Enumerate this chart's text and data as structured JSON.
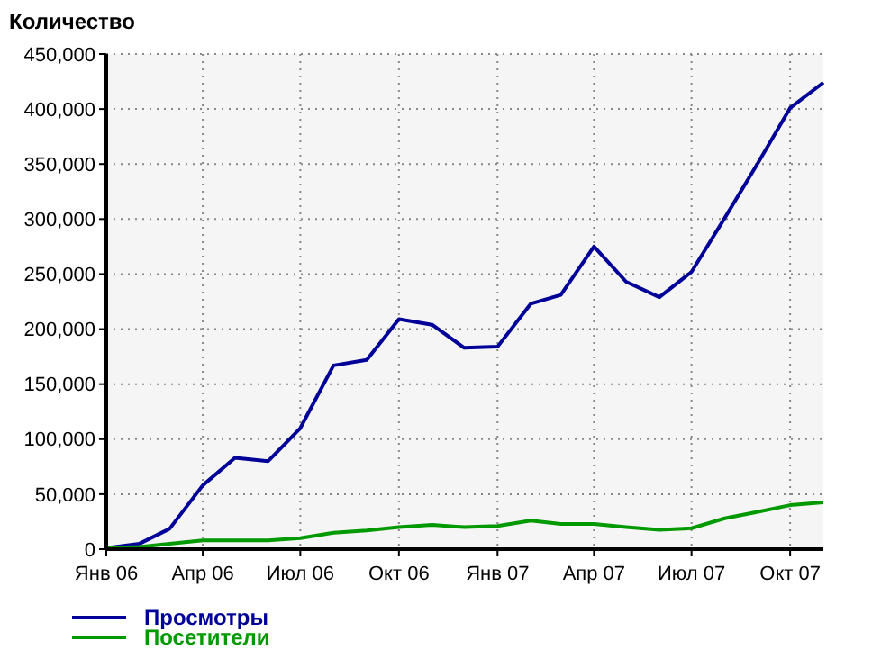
{
  "chart_data": {
    "type": "line",
    "ylabel": "Количество",
    "x": [
      "2006-01",
      "2006-02",
      "2006-03",
      "2006-04",
      "2006-05",
      "2006-06",
      "2006-07",
      "2006-08",
      "2006-09",
      "2006-10",
      "2006-11",
      "2006-12",
      "2007-01",
      "2007-02",
      "2007-03",
      "2007-04",
      "2007-05",
      "2007-06",
      "2007-07",
      "2007-08",
      "2007-09",
      "2007-10",
      "2007-11"
    ],
    "series": [
      {
        "name": "Просмотры",
        "color": "#000099",
        "values": [
          1000,
          5000,
          18500,
          58000,
          83000,
          80000,
          110000,
          167000,
          172000,
          209000,
          204000,
          183000,
          184000,
          223000,
          231000,
          275000,
          243000,
          229000,
          252000,
          301000,
          351000,
          401000,
          424000
        ]
      },
      {
        "name": "Посетители",
        "color": "#009900",
        "values": [
          1000,
          2000,
          5000,
          8000,
          8000,
          8000,
          10000,
          15000,
          17000,
          20000,
          22000,
          20000,
          21000,
          26000,
          23000,
          23000,
          20000,
          17500,
          19000,
          28000,
          34000,
          40000,
          42500
        ]
      }
    ],
    "xlim": [
      "2006-01",
      "2007-11"
    ],
    "xticks": [
      {
        "value": "2006-01",
        "label": "Янв 06"
      },
      {
        "value": "2006-04",
        "label": "Апр 06"
      },
      {
        "value": "2006-07",
        "label": "Июл 06"
      },
      {
        "value": "2006-10",
        "label": "Окт 06"
      },
      {
        "value": "2007-01",
        "label": "Янв 07"
      },
      {
        "value": "2007-04",
        "label": "Апр 07"
      },
      {
        "value": "2007-07",
        "label": "Июл 07"
      },
      {
        "value": "2007-10",
        "label": "Окт 07"
      }
    ],
    "ylim": [
      0,
      450000
    ],
    "yticks": [
      {
        "value": 0,
        "label": "0"
      },
      {
        "value": 50000,
        "label": "50,000"
      },
      {
        "value": 100000,
        "label": "100,000"
      },
      {
        "value": 150000,
        "label": "150,000"
      },
      {
        "value": 200000,
        "label": "200,000"
      },
      {
        "value": 250000,
        "label": "250,000"
      },
      {
        "value": 300000,
        "label": "300,000"
      },
      {
        "value": 350000,
        "label": "350,000"
      },
      {
        "value": 400000,
        "label": "400,000"
      },
      {
        "value": 450000,
        "label": "450,000"
      }
    ],
    "grid": true,
    "legend": "bottom left",
    "marker": "none",
    "line_style": "solid"
  }
}
